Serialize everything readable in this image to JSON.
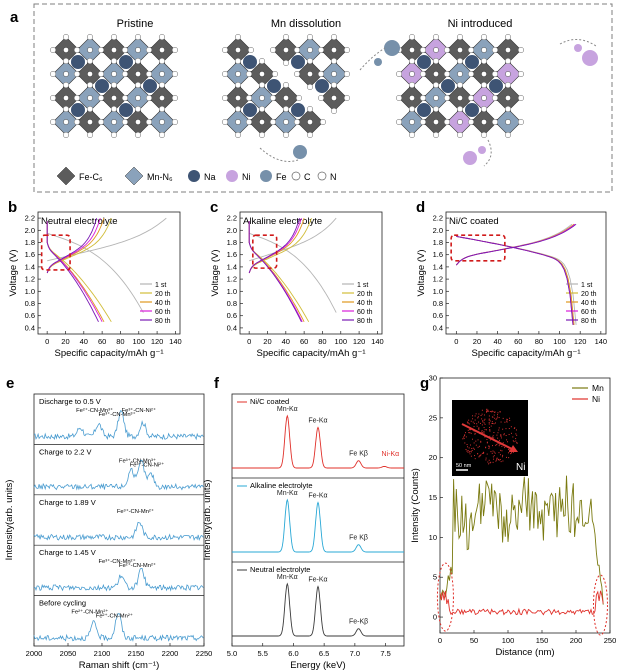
{
  "panel_a": {
    "letter": "a",
    "titles": [
      "Pristine",
      "Mn dissolution",
      "Ni introduced"
    ],
    "legend": [
      {
        "label": "Fe-C₆",
        "shape": "octahedron",
        "color": "#5c5c5c"
      },
      {
        "label": "Mn-N₆",
        "shape": "octahedron",
        "color": "#8aa2bb"
      },
      {
        "label": "Na",
        "shape": "ball",
        "color": "#3e5474"
      },
      {
        "label": "Ni",
        "shape": "ball",
        "color": "#c7a3df"
      },
      {
        "label": "Fe",
        "shape": "ball",
        "color": "#7690aa"
      },
      {
        "label": "C",
        "shape": "circle",
        "color": "#ffffff"
      },
      {
        "label": "N",
        "shape": "circle",
        "color": "#ffffff"
      }
    ],
    "colors": {
      "fe_oct": "#5c5c5c",
      "mn_oct": "#8aa2bb",
      "na": "#3e5474",
      "ni": "#c7a3df",
      "fe_ball": "#7690aa",
      "border": "#888888"
    }
  },
  "chart_data": [
    {
      "id": "b",
      "letter": "b",
      "type": "line",
      "title": "Neutral electrolyte",
      "xlabel": "Specific capacity/mAh g⁻¹",
      "ylabel": "Voltage (V)",
      "xlim": [
        -10,
        145
      ],
      "ylim": [
        0.3,
        2.3
      ],
      "xticks": [
        0,
        20,
        40,
        60,
        80,
        100,
        120,
        140
      ],
      "yticks": [
        0.4,
        0.6,
        0.8,
        1.0,
        1.2,
        1.4,
        1.6,
        1.8,
        2.0,
        2.2
      ],
      "legend": [
        "1 st",
        "20 th",
        "40 th",
        "60 th",
        "80 th"
      ],
      "colors": [
        "#b5b5b5",
        "#d1bd39",
        "#e0981f",
        "#d91fd9",
        "#7a1ab5"
      ],
      "charge_cap": [
        130,
        70,
        62,
        58,
        54
      ],
      "discharge_cap": [
        105,
        70,
        62,
        60,
        56
      ],
      "highlight": {
        "x": [
          -6,
          25
        ],
        "y": [
          1.35,
          1.92
        ]
      }
    },
    {
      "id": "c",
      "letter": "c",
      "type": "line",
      "title": "Alkaline electrolyte",
      "xlabel": "Specific capacity/mAh g⁻¹",
      "ylabel": "Voltage (V)",
      "xlim": [
        -10,
        145
      ],
      "ylim": [
        0.3,
        2.3
      ],
      "xticks": [
        0,
        20,
        40,
        60,
        80,
        100,
        120,
        140
      ],
      "yticks": [
        0.4,
        0.6,
        0.8,
        1.0,
        1.2,
        1.4,
        1.6,
        1.8,
        2.0,
        2.2
      ],
      "legend": [
        "1 st",
        "20 th",
        "40 th",
        "60 th",
        "80 th"
      ],
      "colors": [
        "#b5b5b5",
        "#d1bd39",
        "#e0981f",
        "#d91fd9",
        "#7a1ab5"
      ],
      "charge_cap": [
        95,
        68,
        60,
        57,
        55
      ],
      "discharge_cap": [
        95,
        65,
        60,
        58,
        57
      ],
      "highlight": {
        "x": [
          4,
          30
        ],
        "y": [
          1.38,
          1.92
        ]
      }
    },
    {
      "id": "d",
      "letter": "d",
      "type": "line",
      "title": "Ni/C coated",
      "xlabel": "Specific capacity/mAh g⁻¹",
      "ylabel": "Voltage (V)",
      "xlim": [
        -10,
        145
      ],
      "ylim": [
        0.3,
        2.3
      ],
      "xticks": [
        0,
        20,
        40,
        60,
        80,
        100,
        120,
        140
      ],
      "yticks": [
        0.4,
        0.6,
        0.8,
        1.0,
        1.2,
        1.4,
        1.6,
        1.8,
        2.0,
        2.2
      ],
      "legend": [
        "1 st",
        "20 th",
        "40 th",
        "60 th",
        "80 th"
      ],
      "colors": [
        "#b5b5b5",
        "#d1bd39",
        "#e0981f",
        "#d91fd9",
        "#7a1ab5"
      ],
      "charge_cap": [
        112,
        114,
        114,
        115,
        116
      ],
      "discharge_cap": [
        116,
        114,
        114,
        113,
        113
      ],
      "highlight": {
        "x": [
          -5,
          47
        ],
        "y": [
          1.5,
          1.92
        ]
      }
    },
    {
      "id": "e",
      "letter": "e",
      "type": "line",
      "title": "",
      "xlabel": "Raman shift (cm⁻¹)",
      "ylabel": "Intensity(arb. units)",
      "xlim": [
        2000,
        2250
      ],
      "xticks": [
        2000,
        2050,
        2100,
        2150,
        2200,
        2250
      ],
      "color": "#4a9cd0",
      "series": [
        {
          "name": "Discharge to 0.5 V",
          "peaks": [
            [
              2068,
              0.35
            ],
            [
              2095,
              0.5
            ],
            [
              2128,
              1.0
            ],
            [
              2160,
              0.55
            ]
          ],
          "annotations": [
            "Fe²⁺-CN-Mn³⁺",
            "Fe³⁺-CN-Mn³⁺",
            "Fe³⁺-CN-Ni²⁺"
          ]
        },
        {
          "name": "Charge to 2.2 V",
          "peaks": [
            [
              2143,
              0.7
            ],
            [
              2158,
              1.0
            ],
            [
              2172,
              0.5
            ]
          ],
          "annotations": [
            "Fe³⁺-CN-Mn³⁺",
            "Fe³⁺-CN-Ni²⁺"
          ]
        },
        {
          "name": "Charge to 1.89 V",
          "peaks": [
            [
              2155,
              0.6
            ]
          ],
          "annotations": [
            "Fe³⁺-CN-Mn²⁺"
          ]
        },
        {
          "name": "Charge to 1.45 V",
          "peaks": [
            [
              2128,
              0.45
            ],
            [
              2158,
              0.7
            ]
          ],
          "annotations": [
            "Fe³⁺-CN-Mn²⁺",
            "Fe²⁺-CN-Mn²⁺"
          ]
        },
        {
          "name": "Before cycling",
          "peaks": [
            [
              2088,
              0.6
            ],
            [
              2124,
              1.0
            ]
          ],
          "annotations": [
            "Fe²⁺-CN-Mn²⁺",
            "Fe²⁺-CN-Mn²⁺"
          ]
        }
      ]
    },
    {
      "id": "f",
      "letter": "f",
      "type": "line",
      "title": "",
      "xlabel": "Energy (keV)",
      "ylabel": "Intensity(arb. units)",
      "xlim": [
        5.0,
        7.8
      ],
      "xticks": [
        5.0,
        5.5,
        6.0,
        6.5,
        7.0,
        7.5
      ],
      "series": [
        {
          "name": "Ni/C coated",
          "color": "#e0302a",
          "peaks": [
            [
              5.9,
              1.0
            ],
            [
              6.4,
              0.78
            ],
            [
              7.06,
              0.14
            ],
            [
              7.48,
              0.03
            ]
          ],
          "annotations": [
            "Mn-Kα",
            "Fe-Kα",
            "Fe Kβ",
            "Ni-Kα"
          ]
        },
        {
          "name": "Alkaline electrolyte",
          "color": "#29a8d6",
          "peaks": [
            [
              5.9,
              1.0
            ],
            [
              6.4,
              0.95
            ],
            [
              7.06,
              0.14
            ]
          ],
          "annotations": [
            "Mn-Kα",
            "Fe-Kα",
            "Fe Kβ"
          ]
        },
        {
          "name": "Neutral electrolyte",
          "color": "#3a3a3a",
          "peaks": [
            [
              5.9,
              1.0
            ],
            [
              6.4,
              0.95
            ],
            [
              7.06,
              0.14
            ]
          ],
          "annotations": [
            "Mn-Kα",
            "Fe-Kα",
            "Fe-Kβ"
          ]
        }
      ]
    },
    {
      "id": "g",
      "letter": "g",
      "type": "line",
      "title": "",
      "xlabel": "Distance (nm)",
      "ylabel": "Intensity (Counts)",
      "xlim": [
        0,
        250
      ],
      "ylim": [
        -2,
        30
      ],
      "xticks": [
        0,
        50,
        100,
        150,
        200,
        250
      ],
      "yticks": [
        0,
        5,
        10,
        15,
        20,
        25,
        30
      ],
      "legend": [
        "Mn",
        "Ni"
      ],
      "colors": [
        "#7a7a10",
        "#e0302a"
      ],
      "mn_plateau": 13,
      "inset_label": "Ni",
      "inset_scalebar": "50 nm"
    }
  ]
}
